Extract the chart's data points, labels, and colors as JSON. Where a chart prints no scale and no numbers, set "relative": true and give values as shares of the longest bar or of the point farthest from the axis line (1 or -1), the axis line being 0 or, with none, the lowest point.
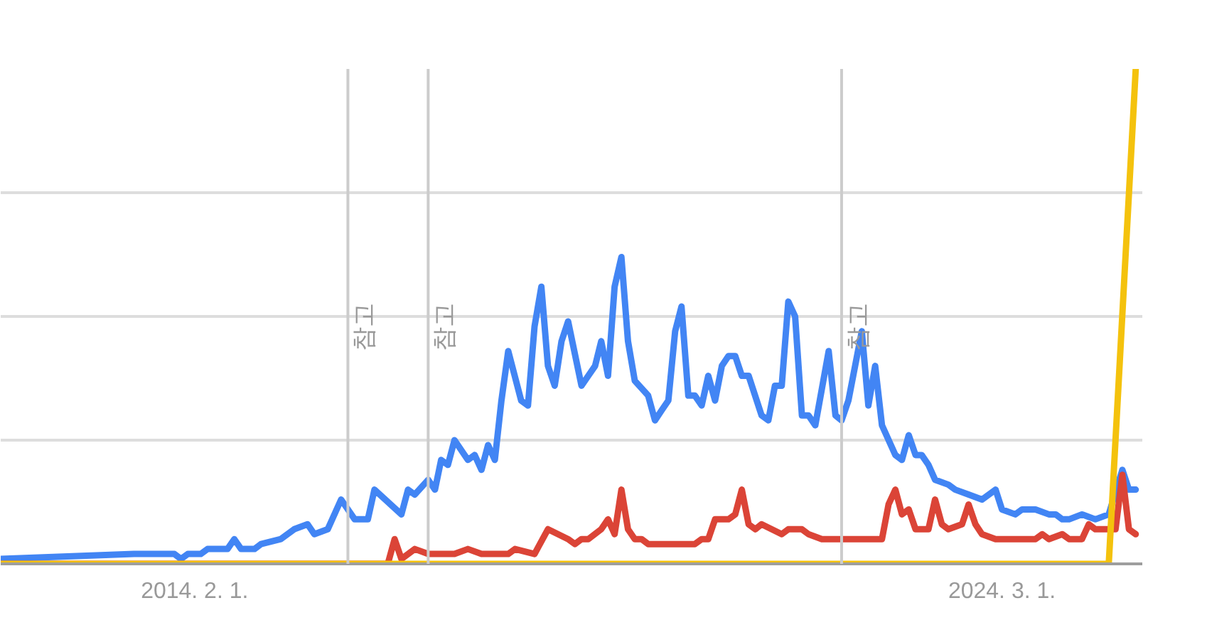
{
  "chart_data": {
    "type": "line",
    "relative": true,
    "grid": "y",
    "line_style": "solid",
    "xlim": [
      "2011-09",
      "2025-12"
    ],
    "xticks": [
      {
        "value": "2014-02-01",
        "label": "2014. 2. 1."
      },
      {
        "value": "2024-03-01",
        "label": "2024. 3. 1."
      }
    ],
    "ref_lines": [
      {
        "axis": "x",
        "value": "2016-01",
        "label": "참고"
      },
      {
        "axis": "x",
        "value": "2017-01",
        "label": "참고"
      },
      {
        "axis": "x",
        "value": "2022-03",
        "label": "참고"
      }
    ],
    "series": [
      {
        "color": "#4285f4",
        "x": [
          "2011-09",
          "2013-05",
          "2013-11",
          "2013-12",
          "2014-01",
          "2014-03",
          "2014-04",
          "2014-07",
          "2014-08",
          "2014-09",
          "2014-11",
          "2014-12",
          "2015-03",
          "2015-05",
          "2015-07",
          "2015-08",
          "2015-10",
          "2015-12",
          "2016-02",
          "2016-04",
          "2016-05",
          "2016-09",
          "2016-10",
          "2016-11",
          "2017-01",
          "2017-02",
          "2017-03",
          "2017-04",
          "2017-05",
          "2017-07",
          "2017-08",
          "2017-09",
          "2017-10",
          "2017-11",
          "2017-12",
          "2018-01",
          "2018-03",
          "2018-04",
          "2018-05",
          "2018-06",
          "2018-07",
          "2018-08",
          "2018-09",
          "2018-10",
          "2018-12",
          "2019-01",
          "2019-02",
          "2019-03",
          "2019-04",
          "2019-05",
          "2019-06",
          "2019-07",
          "2019-08",
          "2019-10",
          "2019-11",
          "2019-12",
          "2020-01",
          "2020-02",
          "2020-03",
          "2020-04",
          "2020-05",
          "2020-06",
          "2020-07",
          "2020-08",
          "2020-09",
          "2020-10",
          "2020-11",
          "2020-12",
          "2021-01",
          "2021-03",
          "2021-04",
          "2021-05",
          "2021-06",
          "2021-07",
          "2021-08",
          "2021-09",
          "2021-10",
          "2021-11",
          "2022-01",
          "2022-02",
          "2022-03",
          "2022-04",
          "2022-06",
          "2022-07",
          "2022-08",
          "2022-09",
          "2022-11",
          "2022-12",
          "2023-01",
          "2023-02",
          "2023-03",
          "2023-04",
          "2023-05",
          "2023-07",
          "2023-08",
          "2023-10",
          "2023-12",
          "2024-01",
          "2024-02",
          "2024-03",
          "2024-05",
          "2024-06",
          "2024-08",
          "2024-10",
          "2024-11",
          "2024-12",
          "2025-01",
          "2025-03",
          "2025-05",
          "2025-07",
          "2025-09",
          "2025-10",
          "2025-11"
        ],
        "values": [
          0.01,
          0.02,
          0.02,
          0.01,
          0.02,
          0.02,
          0.03,
          0.03,
          0.05,
          0.03,
          0.03,
          0.04,
          0.05,
          0.07,
          0.08,
          0.06,
          0.07,
          0.13,
          0.09,
          0.09,
          0.15,
          0.1,
          0.15,
          0.14,
          0.17,
          0.15,
          0.21,
          0.2,
          0.25,
          0.21,
          0.22,
          0.19,
          0.24,
          0.21,
          0.33,
          0.43,
          0.33,
          0.32,
          0.48,
          0.56,
          0.4,
          0.36,
          0.45,
          0.49,
          0.36,
          0.38,
          0.4,
          0.45,
          0.38,
          0.56,
          0.62,
          0.45,
          0.37,
          0.34,
          0.29,
          0.31,
          0.33,
          0.47,
          0.52,
          0.34,
          0.34,
          0.32,
          0.38,
          0.33,
          0.4,
          0.42,
          0.42,
          0.38,
          0.38,
          0.3,
          0.29,
          0.36,
          0.36,
          0.53,
          0.5,
          0.3,
          0.3,
          0.28,
          0.43,
          0.3,
          0.29,
          0.33,
          0.47,
          0.32,
          0.4,
          0.28,
          0.22,
          0.21,
          0.26,
          0.22,
          0.22,
          0.2,
          0.17,
          0.16,
          0.15,
          0.14,
          0.13,
          0.14,
          0.15,
          0.11,
          0.1,
          0.11,
          0.11,
          0.1,
          0.1,
          0.09,
          0.09,
          0.1,
          0.09,
          0.1,
          0.19,
          0.15,
          0.15
        ]
      },
      {
        "color": "#db4437",
        "x": [
          "2011-09",
          "2016-07",
          "2016-08",
          "2016-09",
          "2016-11",
          "2017-01",
          "2017-05",
          "2017-07",
          "2017-09",
          "2018-01",
          "2018-02",
          "2018-05",
          "2018-07",
          "2018-10",
          "2018-11",
          "2018-12",
          "2019-01",
          "2019-03",
          "2019-04",
          "2019-05",
          "2019-06",
          "2019-07",
          "2019-08",
          "2019-09",
          "2019-10",
          "2019-12",
          "2020-03",
          "2020-05",
          "2020-06",
          "2020-07",
          "2020-08",
          "2020-10",
          "2020-11",
          "2020-12",
          "2021-01",
          "2021-02",
          "2021-03",
          "2021-06",
          "2021-07",
          "2021-09",
          "2021-10",
          "2021-12",
          "2022-09",
          "2022-10",
          "2022-11",
          "2022-12",
          "2023-01",
          "2023-02",
          "2023-03",
          "2023-04",
          "2023-05",
          "2023-06",
          "2023-07",
          "2023-09",
          "2023-10",
          "2023-11",
          "2023-12",
          "2024-02",
          "2024-04",
          "2024-08",
          "2024-09",
          "2024-10",
          "2024-12",
          "2025-01",
          "2025-03",
          "2025-04",
          "2025-05",
          "2025-08",
          "2025-09",
          "2025-10",
          "2025-11"
        ],
        "values": [
          0,
          0,
          0.05,
          0.01,
          0.03,
          0.02,
          0.02,
          0.03,
          0.02,
          0.02,
          0.03,
          0.02,
          0.07,
          0.05,
          0.04,
          0.05,
          0.05,
          0.07,
          0.09,
          0.06,
          0.15,
          0.07,
          0.05,
          0.05,
          0.04,
          0.04,
          0.04,
          0.04,
          0.05,
          0.05,
          0.09,
          0.09,
          0.1,
          0.15,
          0.08,
          0.07,
          0.08,
          0.06,
          0.07,
          0.07,
          0.06,
          0.05,
          0.05,
          0.12,
          0.15,
          0.1,
          0.11,
          0.07,
          0.07,
          0.07,
          0.13,
          0.08,
          0.07,
          0.08,
          0.12,
          0.08,
          0.06,
          0.05,
          0.05,
          0.05,
          0.06,
          0.05,
          0.06,
          0.05,
          0.05,
          0.08,
          0.07,
          0.07,
          0.18,
          0.07,
          0.06
        ]
      },
      {
        "color": "#f4c20d",
        "x": [
          "2011-09",
          "2025-07",
          "2025-11"
        ],
        "values": [
          0,
          0,
          1
        ]
      }
    ]
  }
}
